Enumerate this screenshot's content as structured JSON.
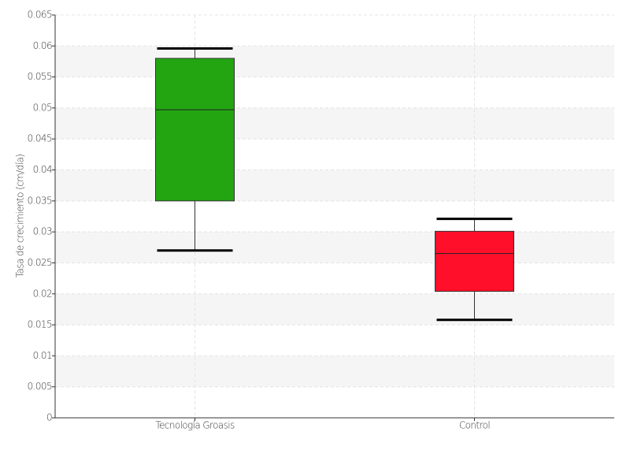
{
  "chart_data": {
    "type": "box",
    "y_label": "Tasa de crecimiento (cm/día)",
    "categories": [
      "Tecnología Groasis",
      "Control"
    ],
    "boxes": [
      {
        "min": 0.027,
        "q1": 0.035,
        "median": 0.0497,
        "q3": 0.058,
        "max": 0.0596,
        "color": "#22a511"
      },
      {
        "min": 0.0158,
        "q1": 0.0204,
        "median": 0.0265,
        "q3": 0.0301,
        "max": 0.0321,
        "color": "#ff0f2a"
      }
    ],
    "ylim": [
      0,
      0.065
    ],
    "yticks": [
      0,
      0.005,
      0.01,
      0.015,
      0.02,
      0.025,
      0.03,
      0.035,
      0.04,
      0.045,
      0.05,
      0.055,
      0.06,
      0.065
    ],
    "grid": true
  }
}
